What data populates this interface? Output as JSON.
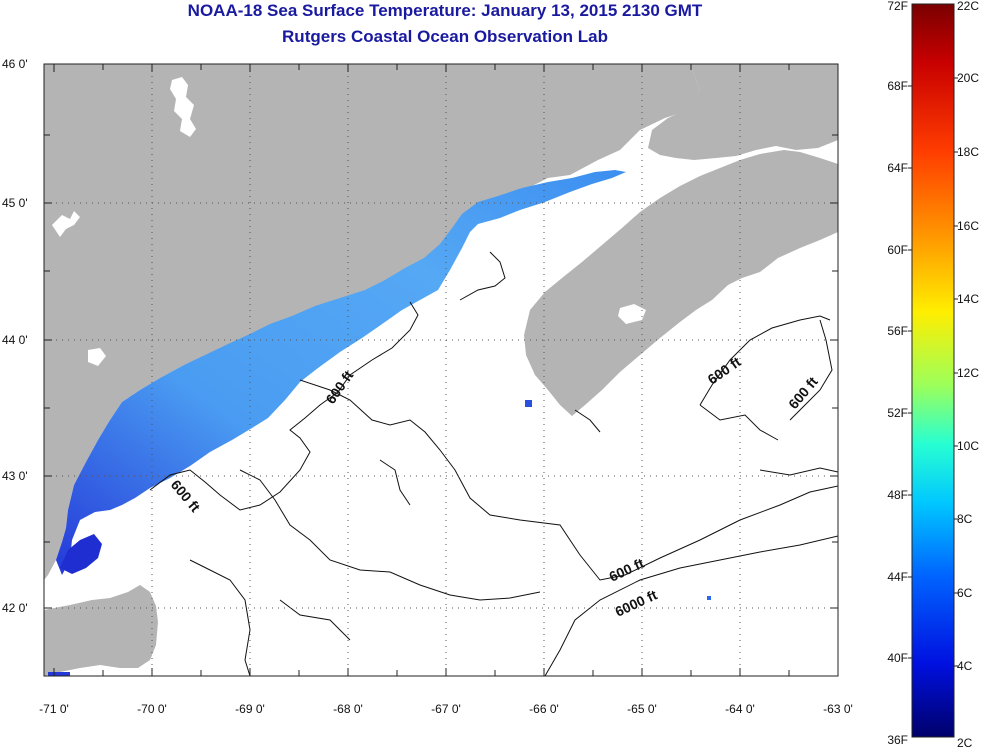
{
  "title": {
    "line1": "NOAA-18 Sea Surface Temperature:  January 13, 2015 2130 GMT",
    "line2": "Rutgers Coastal Ocean Observation Lab"
  },
  "map": {
    "lat_ticks": [
      "46 0'",
      "45 0'",
      "44 0'",
      "43 0'",
      "42 0'"
    ],
    "lon_ticks": [
      "-71 0'",
      "-70 0'",
      "-69 0'",
      "-68 0'",
      "-67 0'",
      "-66 0'",
      "-65 0'",
      "-64 0'",
      "-63 0'"
    ],
    "contour_labels": [
      {
        "id": "c1",
        "text": "600 ft"
      },
      {
        "id": "c2",
        "text": "600 ft"
      },
      {
        "id": "c3",
        "text": "600 ft"
      },
      {
        "id": "c4",
        "text": "600 ft"
      },
      {
        "id": "c5",
        "text": "600 ft"
      },
      {
        "id": "c6",
        "text": "6000 ft"
      }
    ],
    "colors": {
      "land": "#b4b4b4",
      "ocean": "#ffffff",
      "sst_cold": "#2a3ae0",
      "sst_mid": "#4aa0f0"
    }
  },
  "colorbar": {
    "fahrenheit": [
      "72F",
      "68F",
      "64F",
      "60F",
      "56F",
      "52F",
      "48F",
      "44F",
      "40F",
      "36F"
    ],
    "celsius": [
      "22C",
      "20C",
      "18C",
      "16C",
      "14C",
      "12C",
      "10C",
      "8C",
      "6C",
      "4C",
      "2C"
    ]
  }
}
